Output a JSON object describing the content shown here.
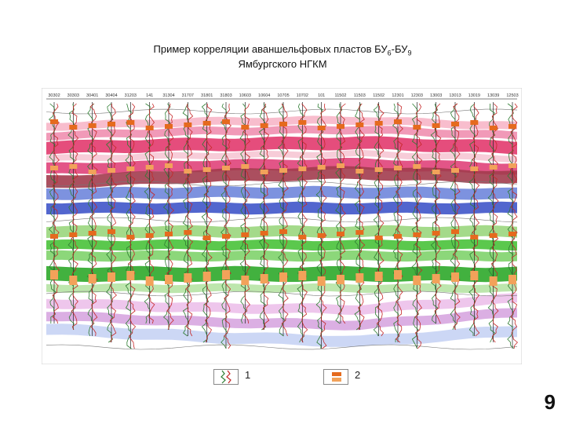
{
  "title": {
    "prefix": "Пример корреляции аваншельфовых пластов БУ",
    "sub1": "6",
    "mid": "-БУ",
    "sub2": "9",
    "line2": "Ямбургского НГКМ"
  },
  "wells": [
    "30302",
    "30303",
    "30401",
    "30404",
    "31203",
    "141",
    "31304",
    "31707",
    "31801",
    "31803",
    "10603",
    "10604",
    "10705",
    "10702",
    "101",
    "11502",
    "11503",
    "11502",
    "12301",
    "12303",
    "13003",
    "13013",
    "13019",
    "13039",
    "12503"
  ],
  "layers": [
    {
      "color": "#f7b6c8"
    },
    {
      "color": "#ef8fb0"
    },
    {
      "color": "#e23a6e"
    },
    {
      "color": "#f6c7d4"
    },
    {
      "color": "#e0427a"
    },
    {
      "color": "#a23c4e"
    },
    {
      "color": "#6f86dc"
    },
    {
      "color": "#3f55c9"
    },
    {
      "color": "#9ad67d"
    },
    {
      "color": "#49c23a"
    },
    {
      "color": "#7fd36c"
    },
    {
      "color": "#2ea82a"
    },
    {
      "color": "#b6e3a4"
    },
    {
      "color": "#ecc0ea"
    },
    {
      "color": "#d7a6e0"
    },
    {
      "color": "#c6d3f4"
    }
  ],
  "legend": {
    "item1": "1",
    "item2": "2"
  },
  "page_number": "9"
}
